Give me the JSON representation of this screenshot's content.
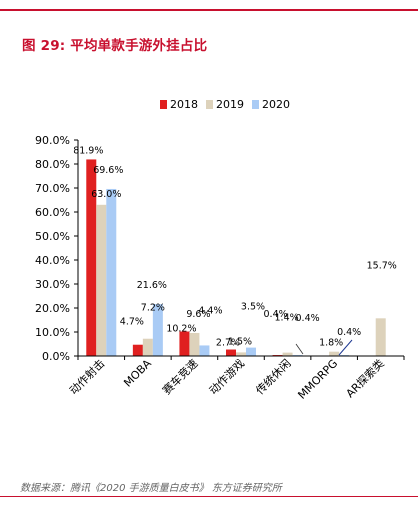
{
  "header": {
    "title": "图 29: 平均单款手游外挂占比",
    "source": "数据来源：腾讯《2020 手游质量白皮书》 东方证券研究所"
  },
  "chart_data": {
    "type": "bar",
    "categories": [
      "动作射击",
      "MOBA",
      "赛车竞速",
      "动作游戏",
      "传统休闲",
      "MMORPG",
      "AR探索类"
    ],
    "series": [
      {
        "name": "2018",
        "color": "#e02020",
        "values": [
          81.9,
          4.7,
          10.2,
          2.7,
          0.4,
          null,
          null
        ]
      },
      {
        "name": "2019",
        "color": "#ddd2bb",
        "values": [
          63.0,
          7.2,
          9.6,
          1.5,
          1.4,
          1.8,
          15.7
        ]
      },
      {
        "name": "2020",
        "color": "#a9cbf5",
        "values": [
          69.6,
          21.6,
          4.4,
          3.5,
          0.4,
          0.4,
          null
        ]
      }
    ],
    "labels": [
      [
        "81.9%",
        "4.7%",
        "10.2%",
        "2.7%",
        "0.4%",
        "",
        ""
      ],
      [
        "63.0%",
        "7.2%",
        "9.6%",
        "1.5%",
        "1.4%",
        "1.8%",
        "15.7%"
      ],
      [
        "69.6%",
        "21.6%",
        "4.4%",
        "3.5%",
        "0.4%",
        "0.4%",
        ""
      ]
    ],
    "yticks": [
      "0.0%",
      "10.0%",
      "20.0%",
      "30.0%",
      "40.0%",
      "50.0%",
      "60.0%",
      "70.0%",
      "80.0%",
      "90.0%"
    ],
    "ylim": [
      0,
      90
    ],
    "legend_position": "top",
    "grid": false
  }
}
